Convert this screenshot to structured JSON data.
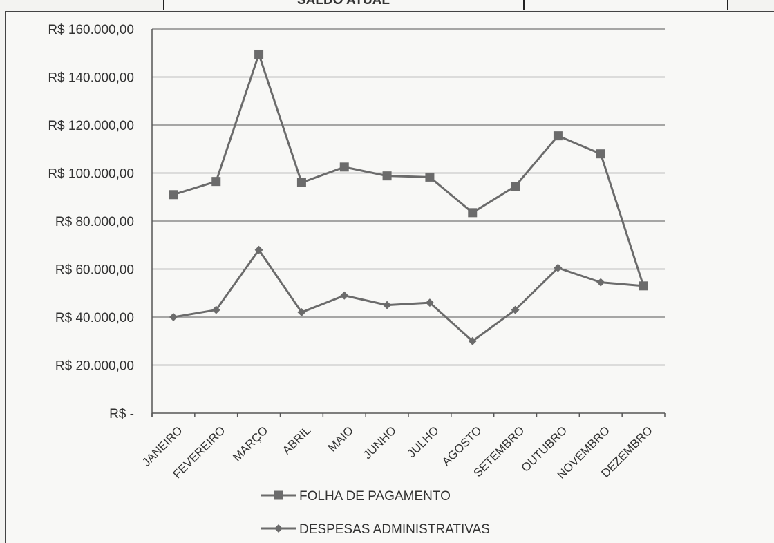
{
  "header_table": {
    "label": "SALDO ATUAL",
    "value": ""
  },
  "colors": {
    "series": "#6b6b6b",
    "grid": "#8a8a8a",
    "axis": "#555555"
  },
  "chart_data": {
    "type": "line",
    "categories": [
      "JANEIRO",
      "FEVEREIRO",
      "MARÇO",
      "ABRIL",
      "MAIO",
      "JUNHO",
      "JULHO",
      "AGOSTO",
      "SETEMBRO",
      "OUTUBRO",
      "NOVEMBRO",
      "DEZEMBRO"
    ],
    "y_ticks": [
      0,
      20000,
      40000,
      60000,
      80000,
      100000,
      120000,
      140000,
      160000
    ],
    "y_tick_labels": [
      "R$ -",
      "R$ 20.000,00",
      "R$ 40.000,00",
      "R$ 60.000,00",
      "R$ 80.000,00",
      "R$ 100.000,00",
      "R$ 120.000,00",
      "R$ 140.000,00",
      "R$ 160.000,00"
    ],
    "ylim": [
      0,
      160000
    ],
    "grid": true,
    "legend_position": "bottom",
    "series": [
      {
        "name": "FOLHA DE PAGAMENTO",
        "marker": "square",
        "values": [
          91000,
          96500,
          149500,
          96000,
          102500,
          98800,
          98300,
          83500,
          94500,
          115500,
          108000,
          53000
        ]
      },
      {
        "name": "DESPESAS ADMINISTRATIVAS",
        "marker": "diamond",
        "values": [
          40000,
          43000,
          68000,
          42000,
          49000,
          45000,
          46000,
          30000,
          43000,
          60500,
          54500,
          53000
        ]
      }
    ]
  }
}
